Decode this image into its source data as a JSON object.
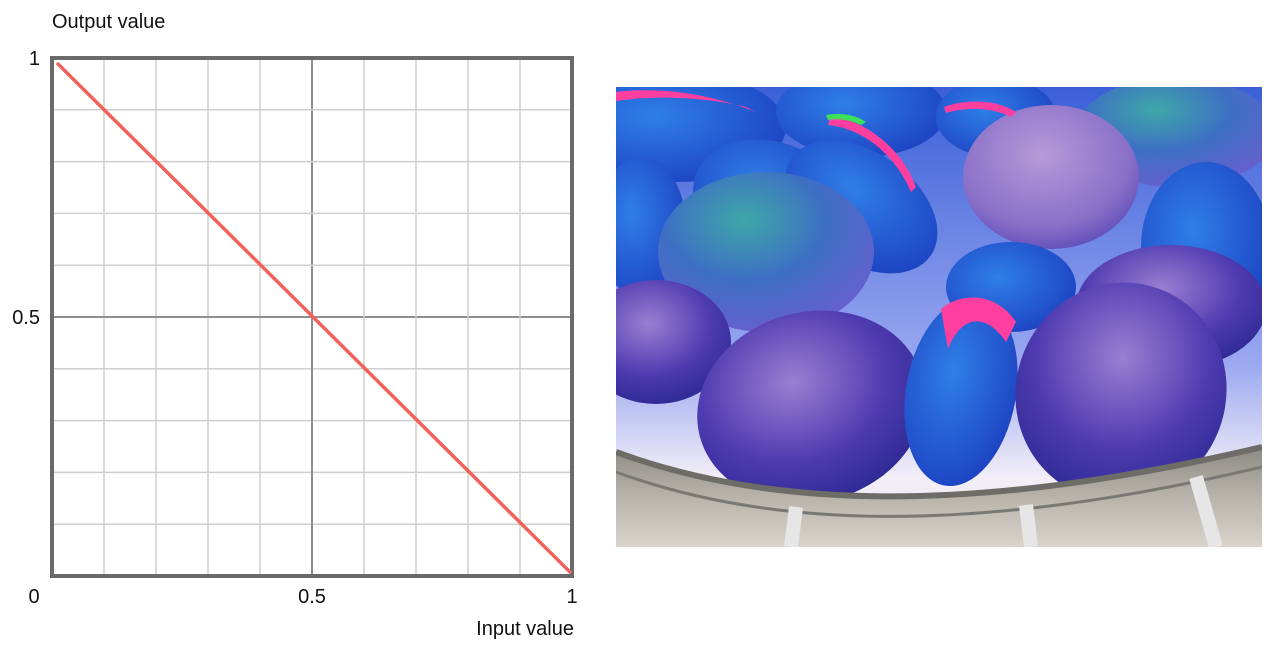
{
  "chart_data": {
    "type": "line",
    "xlabel": "Input value",
    "ylabel": "Output value",
    "xlim": [
      0,
      1
    ],
    "ylim": [
      0,
      1
    ],
    "x_ticks": [
      "0",
      "0.5",
      "1"
    ],
    "y_ticks": [
      "0",
      "0.5",
      "1"
    ],
    "grid": true,
    "grid_divisions": 10,
    "series": [
      {
        "x": [
          0,
          1
        ],
        "y": [
          1,
          0
        ],
        "color": "#f2625a"
      }
    ]
  },
  "image": {
    "subject": "color-inverted mangoes in a basket"
  }
}
